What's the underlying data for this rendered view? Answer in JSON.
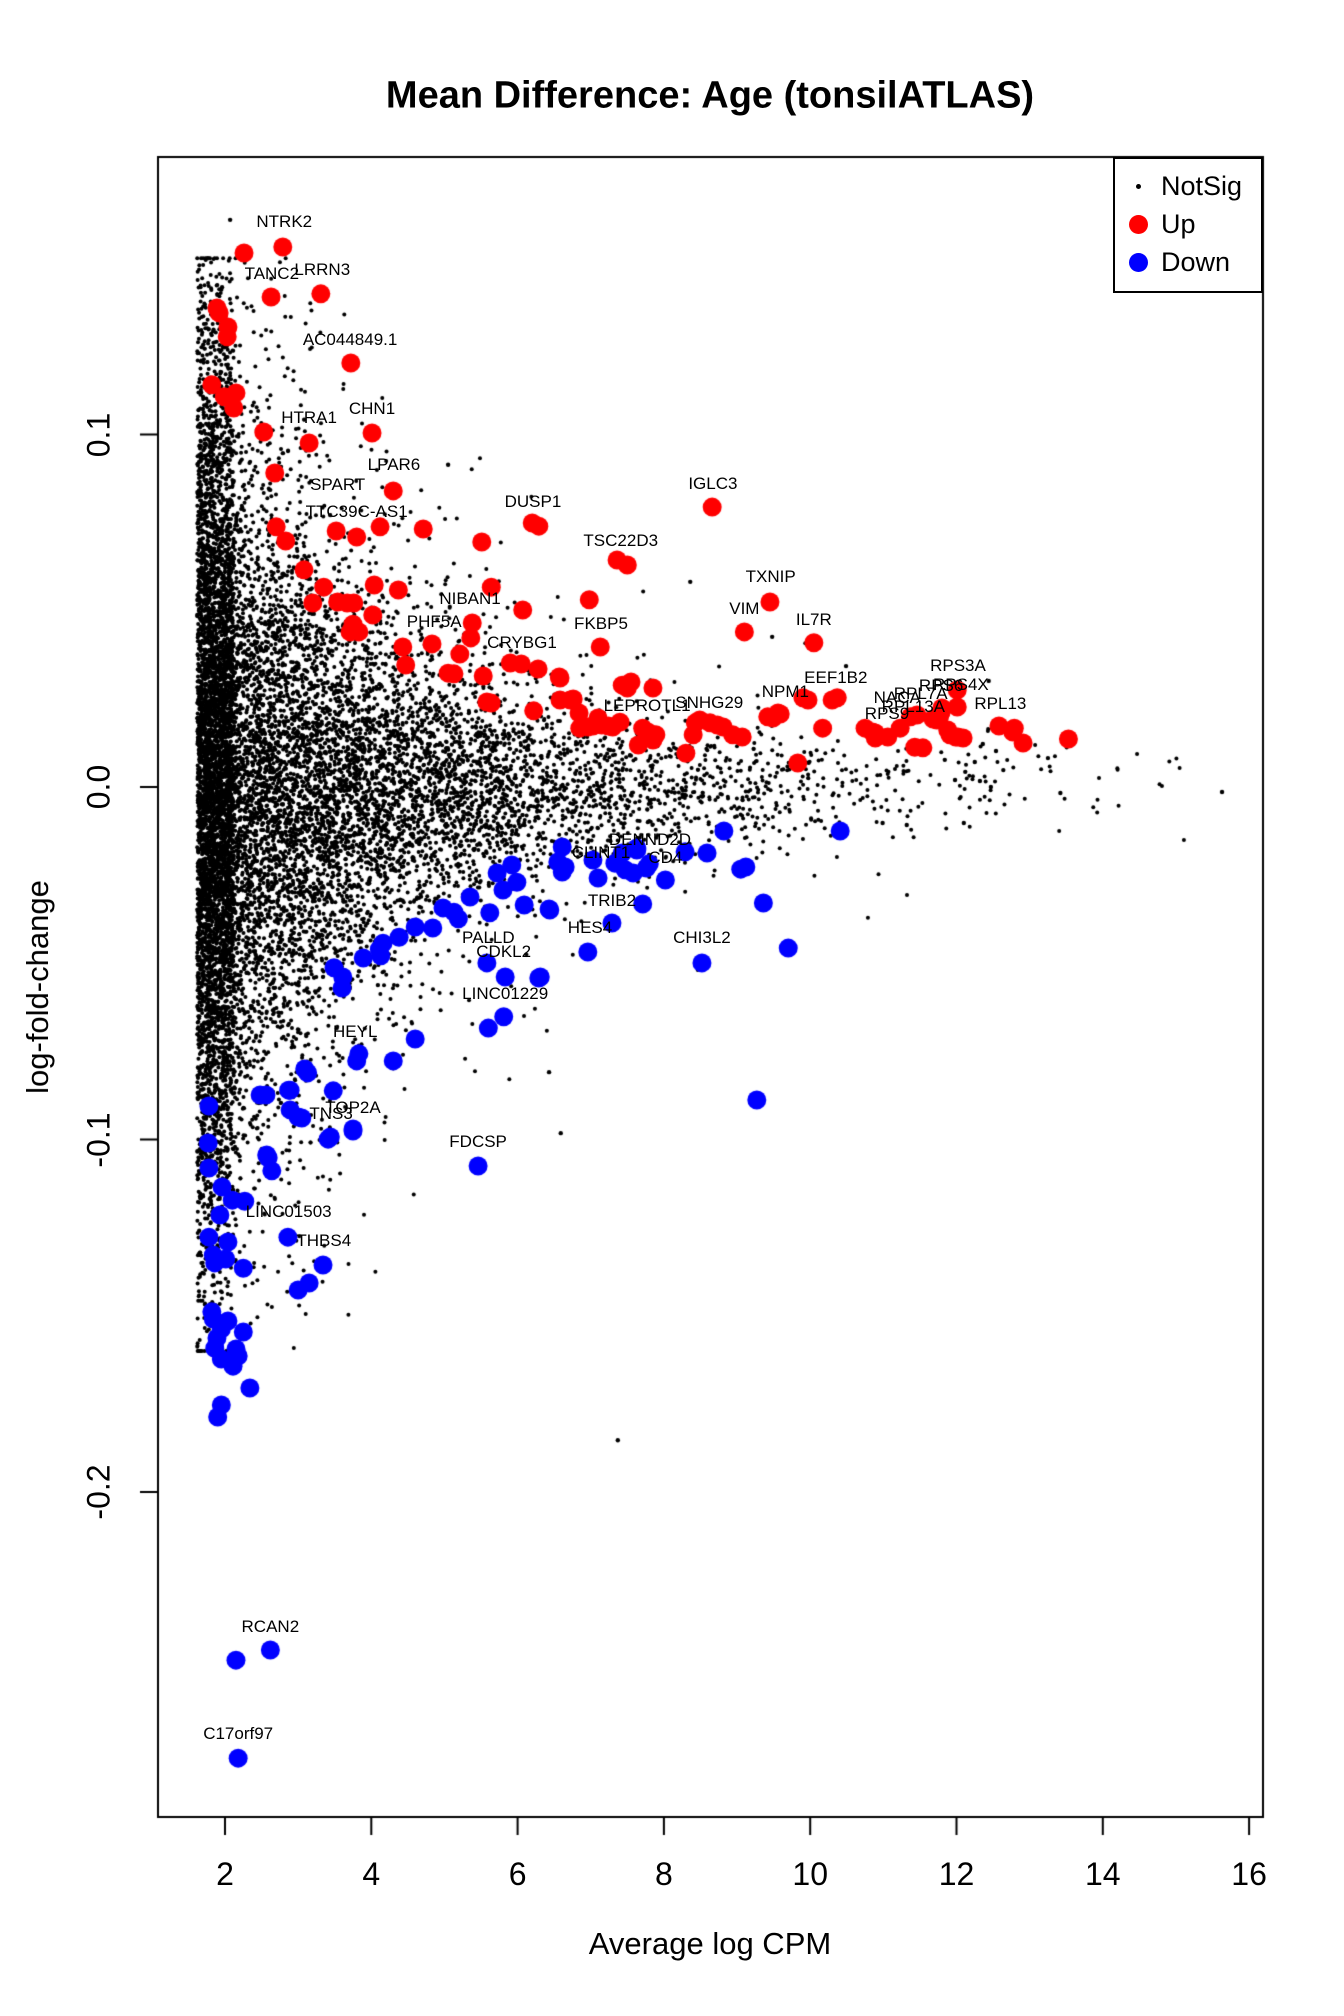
{
  "title": "Mean Difference: Age (tonsilATLAS)",
  "legend": {
    "items": [
      {
        "label": "NotSig",
        "color": "#000000",
        "size": 5
      },
      {
        "label": "Up",
        "color": "#ff0000",
        "size": 19
      },
      {
        "label": "Down",
        "color": "#0000ff",
        "size": 19
      }
    ]
  },
  "chart_data": {
    "type": "scatter",
    "title": "Mean Difference: Age (tonsilATLAS)",
    "xlabel": "Average log CPM",
    "ylabel": "log-fold-change",
    "xlim": [
      1.08,
      16.19
    ],
    "ylim": [
      -0.292,
      0.179
    ],
    "xticks": [
      "2",
      "4",
      "6",
      "8",
      "10",
      "12",
      "14",
      "16"
    ],
    "xtick_values": [
      2,
      4,
      6,
      8,
      10,
      12,
      14,
      16
    ],
    "yticks": [
      "0.1",
      "0.0",
      "-0.1",
      "-0.2"
    ],
    "ytick_values": [
      0.1,
      0.0,
      -0.1,
      -0.2
    ],
    "grid": false,
    "legend_position": "top-right",
    "colors": {
      "notsig": "#000000",
      "up": "#ff0000",
      "down": "#0000ff"
    },
    "point_radius": {
      "notsig": 2,
      "outlier": 2.2,
      "sig": 9.5
    },
    "up_labeled": [
      {
        "gene": "NTRK2",
        "x": 2.79,
        "y": 0.1532,
        "lx": 2.81,
        "ly": 0.1603
      },
      {
        "gene": "TANC2",
        "x": 2.63,
        "y": 0.139,
        "lx": 2.64,
        "ly": 0.1455
      },
      {
        "gene": "LRRN3",
        "x": 3.31,
        "y": 0.1399,
        "lx": 3.33,
        "ly": 0.1467
      },
      {
        "gene": "AC044849.1",
        "x": 3.72,
        "y": 0.1203,
        "lx": 3.71,
        "ly": 0.1268
      },
      {
        "gene": "CHN1",
        "x": 4.01,
        "y": 0.1004,
        "lx": 4.01,
        "ly": 0.1072
      },
      {
        "gene": "HTRA1",
        "x": 3.15,
        "y": 0.0976,
        "lx": 3.15,
        "ly": 0.1047
      },
      {
        "gene": "LPAR6",
        "x": 4.3,
        "y": 0.084,
        "lx": 4.31,
        "ly": 0.0913
      },
      {
        "gene": "SPART",
        "x": 3.52,
        "y": 0.0726,
        "lx": 3.54,
        "ly": 0.0857
      },
      {
        "gene": "TTC39C-AS1",
        "x": 3.8,
        "y": 0.0709,
        "lx": 3.8,
        "ly": 0.078
      },
      {
        "gene": "DUSP1",
        "x": 6.2,
        "y": 0.0749,
        "lx": 6.21,
        "ly": 0.0809
      },
      {
        "gene": "IGLC3",
        "x": 8.66,
        "y": 0.0794,
        "lx": 8.67,
        "ly": 0.086
      },
      {
        "gene": "TSC22D3",
        "x": 7.36,
        "y": 0.0644,
        "lx": 7.41,
        "ly": 0.0698
      },
      {
        "gene": "TXNIP",
        "x": 9.45,
        "y": 0.0525,
        "lx": 9.46,
        "ly": 0.0596
      },
      {
        "gene": "VIM",
        "x": 9.1,
        "y": 0.044,
        "lx": 9.1,
        "ly": 0.0505
      },
      {
        "gene": "IL7R",
        "x": 10.05,
        "y": 0.0409,
        "lx": 10.05,
        "ly": 0.0474
      },
      {
        "gene": "NIBAN1",
        "x": 5.38,
        "y": 0.0465,
        "lx": 5.35,
        "ly": 0.0533
      },
      {
        "gene": "PHF5A",
        "x": 4.83,
        "y": 0.0406,
        "lx": 4.86,
        "ly": 0.0468
      },
      {
        "gene": "CRYBG1",
        "x": 6.05,
        "y": 0.0349,
        "lx": 6.06,
        "ly": 0.0409
      },
      {
        "gene": "FKBP5",
        "x": 7.13,
        "y": 0.0397,
        "lx": 7.14,
        "ly": 0.0462
      },
      {
        "gene": "EEF1B2",
        "x": 10.37,
        "y": 0.0253,
        "lx": 10.35,
        "ly": 0.0309
      },
      {
        "gene": "NPM1",
        "x": 9.59,
        "y": 0.0207,
        "lx": 9.66,
        "ly": 0.027
      },
      {
        "gene": "LEPROTL1",
        "x": 7.78,
        "y": 0.0156,
        "lx": 7.77,
        "ly": 0.023
      },
      {
        "gene": "SNHG29",
        "x": 8.63,
        "y": 0.0182,
        "lx": 8.62,
        "ly": 0.0238
      },
      {
        "gene": "NACA",
        "x": 11.23,
        "y": 0.0167,
        "lx": 11.19,
        "ly": 0.0253
      },
      {
        "gene": "RPL7A",
        "x": 11.46,
        "y": 0.0204,
        "lx": 11.51,
        "ly": 0.0264
      },
      {
        "gene": "RPL13A",
        "x": 11.37,
        "y": 0.0199,
        "lx": 11.41,
        "ly": 0.0227
      },
      {
        "gene": "RPS9",
        "x": 11.06,
        "y": 0.0142,
        "lx": 11.05,
        "ly": 0.0207
      },
      {
        "gene": "RPS6",
        "x": 11.8,
        "y": 0.0224,
        "lx": 11.79,
        "ly": 0.0287
      },
      {
        "gene": "RPS4X",
        "x": 12.01,
        "y": 0.0227,
        "lx": 12.06,
        "ly": 0.0289
      },
      {
        "gene": "RPS3A",
        "x": 12.01,
        "y": 0.0275,
        "lx": 12.02,
        "ly": 0.0343
      },
      {
        "gene": "RPL13",
        "x": 12.58,
        "y": 0.0173,
        "lx": 12.6,
        "ly": 0.0235
      }
    ],
    "down_labeled": [
      {
        "gene": "DENND2D",
        "x": 7.8,
        "y": -0.0218,
        "lx": 7.81,
        "ly": -0.015
      },
      {
        "gene": "CLINT1",
        "x": 7.1,
        "y": -0.0258,
        "lx": 7.14,
        "ly": -0.0187
      },
      {
        "gene": "CD4",
        "x": 8.02,
        "y": -0.0264,
        "lx": 8.02,
        "ly": -0.0201
      },
      {
        "gene": "TRIB2",
        "x": 7.71,
        "y": -0.0332,
        "lx": 7.29,
        "ly": -0.0323
      },
      {
        "gene": "HES4",
        "x": 6.96,
        "y": -0.0468,
        "lx": 6.99,
        "ly": -0.04
      },
      {
        "gene": "PALLD",
        "x": 5.58,
        "y": -0.0499,
        "lx": 5.6,
        "ly": -0.0428
      },
      {
        "gene": "CDKL2",
        "x": 5.83,
        "y": -0.0539,
        "lx": 5.81,
        "ly": -0.0468
      },
      {
        "gene": "CHI3L2",
        "x": 8.52,
        "y": -0.0499,
        "lx": 8.52,
        "ly": -0.0428
      },
      {
        "gene": "LINC01229",
        "x": 5.81,
        "y": -0.0652,
        "lx": 5.83,
        "ly": -0.0587
      },
      {
        "gene": "HEYL",
        "x": 3.83,
        "y": -0.0757,
        "lx": 3.78,
        "ly": -0.0695
      },
      {
        "gene": "TOP2A",
        "x": 3.48,
        "y": -0.0862,
        "lx": 3.75,
        "ly": -0.0911
      },
      {
        "gene": "TNS3",
        "x": 3.05,
        "y": -0.0939,
        "lx": 3.45,
        "ly": -0.0928
      },
      {
        "gene": "FDCSP",
        "x": 5.46,
        "y": -0.1075,
        "lx": 5.46,
        "ly": -0.1007
      },
      {
        "gene": "LINC01503",
        "x": 2.1,
        "y": -0.1172,
        "lx": 2.87,
        "ly": -0.1206
      },
      {
        "gene": "THBS4",
        "x": 2.86,
        "y": -0.1277,
        "lx": 3.35,
        "ly": -0.1288
      },
      {
        "gene": "RCAN2",
        "x": 2.62,
        "y": -0.2448,
        "lx": 2.62,
        "ly": -0.2383
      },
      {
        "gene": "C17orf97",
        "x": 2.18,
        "y": -0.2755,
        "lx": 2.18,
        "ly": -0.2686
      }
    ],
    "up_points": [
      [
        2.26,
        0.1515
      ],
      [
        1.89,
        0.1359
      ],
      [
        1.92,
        0.1345
      ],
      [
        2.04,
        0.1305
      ],
      [
        2.03,
        0.1277
      ],
      [
        1.82,
        0.1141
      ],
      [
        1.99,
        0.1107
      ],
      [
        2.15,
        0.1118
      ],
      [
        2.12,
        0.1075
      ],
      [
        2.53,
        0.1007
      ],
      [
        2.68,
        0.0891
      ],
      [
        2.7,
        0.0738
      ],
      [
        2.83,
        0.0698
      ],
      [
        4.12,
        0.0738
      ],
      [
        4.71,
        0.0732
      ],
      [
        5.51,
        0.0695
      ],
      [
        6.29,
        0.074
      ],
      [
        7.5,
        0.063
      ],
      [
        3.08,
        0.0616
      ],
      [
        3.35,
        0.0567
      ],
      [
        4.04,
        0.0573
      ],
      [
        4.37,
        0.0559
      ],
      [
        3.2,
        0.0522
      ],
      [
        3.54,
        0.0525
      ],
      [
        3.67,
        0.0522
      ],
      [
        3.76,
        0.0522
      ],
      [
        4.02,
        0.0488
      ],
      [
        3.75,
        0.0462
      ],
      [
        3.71,
        0.044
      ],
      [
        3.83,
        0.044
      ],
      [
        4.43,
        0.0397
      ],
      [
        4.47,
        0.0346
      ],
      [
        5.21,
        0.0377
      ],
      [
        5.36,
        0.0423
      ],
      [
        5.64,
        0.0567
      ],
      [
        6.07,
        0.0502
      ],
      [
        6.98,
        0.0531
      ],
      [
        5.9,
        0.0352
      ],
      [
        6.28,
        0.0335
      ],
      [
        6.57,
        0.0312
      ],
      [
        5.05,
        0.0323
      ],
      [
        5.13,
        0.0321
      ],
      [
        5.53,
        0.0315
      ],
      [
        5.58,
        0.0241
      ],
      [
        5.64,
        0.0238
      ],
      [
        6.22,
        0.0216
      ],
      [
        6.76,
        0.025
      ],
      [
        6.84,
        0.021
      ],
      [
        7.1,
        0.0196
      ],
      [
        6.58,
        0.0309
      ],
      [
        6.58,
        0.0247
      ],
      [
        6.72,
        0.0247
      ],
      [
        6.85,
        0.0167
      ],
      [
        6.96,
        0.017
      ],
      [
        7.03,
        0.0173
      ],
      [
        7.15,
        0.0176
      ],
      [
        7.24,
        0.0173
      ],
      [
        7.3,
        0.017
      ],
      [
        7.4,
        0.0184
      ],
      [
        7.43,
        0.0289
      ],
      [
        7.5,
        0.0281
      ],
      [
        7.55,
        0.0298
      ],
      [
        7.65,
        0.0119
      ],
      [
        7.71,
        0.0167
      ],
      [
        7.85,
        0.0281
      ],
      [
        7.85,
        0.0133
      ],
      [
        7.89,
        0.0148
      ],
      [
        8.3,
        0.0096
      ],
      [
        8.4,
        0.0148
      ],
      [
        8.43,
        0.0182
      ],
      [
        8.49,
        0.019
      ],
      [
        8.73,
        0.0176
      ],
      [
        8.81,
        0.017
      ],
      [
        8.94,
        0.0148
      ],
      [
        9.07,
        0.0142
      ],
      [
        9.42,
        0.0199
      ],
      [
        9.49,
        0.0196
      ],
      [
        9.56,
        0.021
      ],
      [
        9.83,
        0.0068
      ],
      [
        9.9,
        0.0253
      ],
      [
        9.97,
        0.0247
      ],
      [
        10.17,
        0.0167
      ],
      [
        10.3,
        0.0247
      ],
      [
        10.85,
        0.0156
      ],
      [
        10.89,
        0.0139
      ],
      [
        10.75,
        0.0167
      ],
      [
        11.43,
        0.0113
      ],
      [
        11.54,
        0.0111
      ],
      [
        11.79,
        0.0213
      ],
      [
        11.73,
        0.019
      ],
      [
        11.88,
        0.0162
      ],
      [
        12.02,
        0.0142
      ],
      [
        12.79,
        0.0167
      ],
      [
        13.53,
        0.0136
      ],
      [
        11.77,
        0.0201
      ],
      [
        11.68,
        0.0193
      ],
      [
        11.91,
        0.0148
      ],
      [
        11.99,
        0.0142
      ],
      [
        12.09,
        0.0139
      ],
      [
        12.91,
        0.0125
      ],
      [
        12.77,
        0.0156
      ],
      [
        10.89,
        0.0153
      ]
    ],
    "down_points": [
      [
        6.61,
        -0.017
      ],
      [
        6.55,
        -0.0213
      ],
      [
        6.61,
        -0.0241
      ],
      [
        7.03,
        -0.0207
      ],
      [
        7.33,
        -0.0216
      ],
      [
        7.47,
        -0.0235
      ],
      [
        7.63,
        -0.0179
      ],
      [
        7.76,
        -0.023
      ],
      [
        7.58,
        -0.0244
      ],
      [
        8.29,
        -0.0184
      ],
      [
        8.59,
        -0.0187
      ],
      [
        8.82,
        -0.0125
      ],
      [
        10.41,
        -0.0125
      ],
      [
        9.05,
        -0.0233
      ],
      [
        9.36,
        -0.0329
      ],
      [
        9.7,
        -0.0457
      ],
      [
        6.43,
        -0.0346
      ],
      [
        6.29,
        -0.0542
      ],
      [
        5.92,
        -0.0221
      ],
      [
        5.72,
        -0.0244
      ],
      [
        5.99,
        -0.027
      ],
      [
        5.8,
        -0.0292
      ],
      [
        5.35,
        -0.0312
      ],
      [
        6.09,
        -0.0335
      ],
      [
        6.44,
        -0.0349
      ],
      [
        6.65,
        -0.0227
      ],
      [
        5.62,
        -0.0357
      ],
      [
        4.98,
        -0.0343
      ],
      [
        5.13,
        -0.0355
      ],
      [
        5.19,
        -0.0374
      ],
      [
        4.84,
        -0.04
      ],
      [
        4.6,
        -0.0397
      ],
      [
        4.38,
        -0.0426
      ],
      [
        4.16,
        -0.0443
      ],
      [
        4.11,
        -0.046
      ],
      [
        4.13,
        -0.0479
      ],
      [
        3.89,
        -0.0485
      ],
      [
        3.49,
        -0.0513
      ],
      [
        3.61,
        -0.0539
      ],
      [
        3.6,
        -0.057
      ],
      [
        6.31,
        -0.0539
      ],
      [
        5.6,
        -0.0684
      ],
      [
        4.6,
        -0.0715
      ],
      [
        4.3,
        -0.0777
      ],
      [
        3.8,
        -0.0777
      ],
      [
        3.09,
        -0.08
      ],
      [
        3.13,
        -0.0811
      ],
      [
        2.87,
        -0.086
      ],
      [
        2.48,
        -0.0874
      ],
      [
        2.89,
        -0.0916
      ],
      [
        3.0,
        -0.0936
      ],
      [
        3.75,
        -0.097
      ],
      [
        3.41,
        -0.0999
      ],
      [
        2.57,
        -0.1044
      ],
      [
        2.56,
        -0.0874
      ],
      [
        2.89,
        -0.086
      ],
      [
        3.44,
        -0.0993
      ],
      [
        3.75,
        -0.0976
      ],
      [
        1.78,
        -0.0905
      ],
      [
        1.77,
        -0.101
      ],
      [
        1.78,
        -0.1081
      ],
      [
        1.96,
        -0.1135
      ],
      [
        2.27,
        -0.1175
      ],
      [
        1.93,
        -0.1214
      ],
      [
        2.59,
        -0.1052
      ],
      [
        2.64,
        -0.1089
      ],
      [
        1.78,
        -0.1277
      ],
      [
        2.04,
        -0.1291
      ],
      [
        1.84,
        -0.1328
      ],
      [
        1.86,
        -0.135
      ],
      [
        2.01,
        -0.1339
      ],
      [
        2.25,
        -0.1365
      ],
      [
        3.34,
        -0.1356
      ],
      [
        3.15,
        -0.1407
      ],
      [
        3.0,
        -0.1427
      ],
      [
        1.82,
        -0.1489
      ],
      [
        1.84,
        -0.1509
      ],
      [
        2.04,
        -0.1515
      ],
      [
        1.95,
        -0.1538
      ],
      [
        2.25,
        -0.1546
      ],
      [
        1.89,
        -0.1563
      ],
      [
        1.86,
        -0.1592
      ],
      [
        2.15,
        -0.1594
      ],
      [
        2.18,
        -0.1614
      ],
      [
        2.11,
        -0.1643
      ],
      [
        1.95,
        -0.1623
      ],
      [
        2.34,
        -0.1705
      ],
      [
        1.95,
        -0.1753
      ],
      [
        1.9,
        -0.1787
      ],
      [
        2.15,
        -0.2477
      ],
      [
        7.29,
        -0.0386
      ],
      [
        9.27,
        -0.0888
      ],
      [
        7.43,
        -0.0187
      ],
      [
        9.12,
        -0.0227
      ],
      [
        7.63,
        -0.0173
      ]
    ],
    "notsig_outliers": [
      [
        15.63,
        -0.0014
      ],
      [
        12.1,
        -0.0102
      ],
      [
        11.32,
        -0.0108
      ],
      [
        10.99,
        -0.0102
      ],
      [
        6.43,
        -0.0809
      ],
      [
        6.59,
        -0.0982
      ],
      [
        7.37,
        -0.1853
      ],
      [
        5.05,
        0.0914
      ],
      [
        8.36,
        0.0582
      ],
      [
        12.44,
        0.0301
      ],
      [
        10.49,
        0.0343
      ],
      [
        9.48,
        0.0426
      ],
      [
        4.09,
        -0.0562
      ],
      [
        2.07,
        0.1609
      ],
      [
        1.96,
        0.1418
      ],
      [
        11.88,
        0.0176
      ],
      [
        12.36,
        0.0122
      ],
      [
        12.54,
        0.0102
      ],
      [
        12.25,
        0.0071
      ],
      [
        11.84,
        0.0077
      ],
      [
        12.12,
        0.0043
      ],
      [
        12.64,
        0.0048
      ],
      [
        11.98,
        0.002
      ],
      [
        12.32,
        0.0017
      ],
      [
        12.47,
        0.0
      ],
      [
        13.25,
        0.0082
      ],
      [
        13.42,
        -0.0017
      ]
    ],
    "notsig_cloud": {
      "description": "dense unlabeled NotSig point cloud, generated deterministically",
      "count": 13000,
      "seed": 7,
      "cpm_min": 1.62,
      "cpm_cap": 15.3,
      "spike_frac": 0.26,
      "spike_hi": 2.12,
      "exp_mean": 2.1,
      "sd_amp": 0.056,
      "sd_decay": 2.25,
      "sd_base": 0.0058,
      "tail_frac": 0.14,
      "tail_mult": 2.2,
      "lfc_clip_lo": -0.16,
      "lfc_clip_hi": 0.15
    }
  }
}
